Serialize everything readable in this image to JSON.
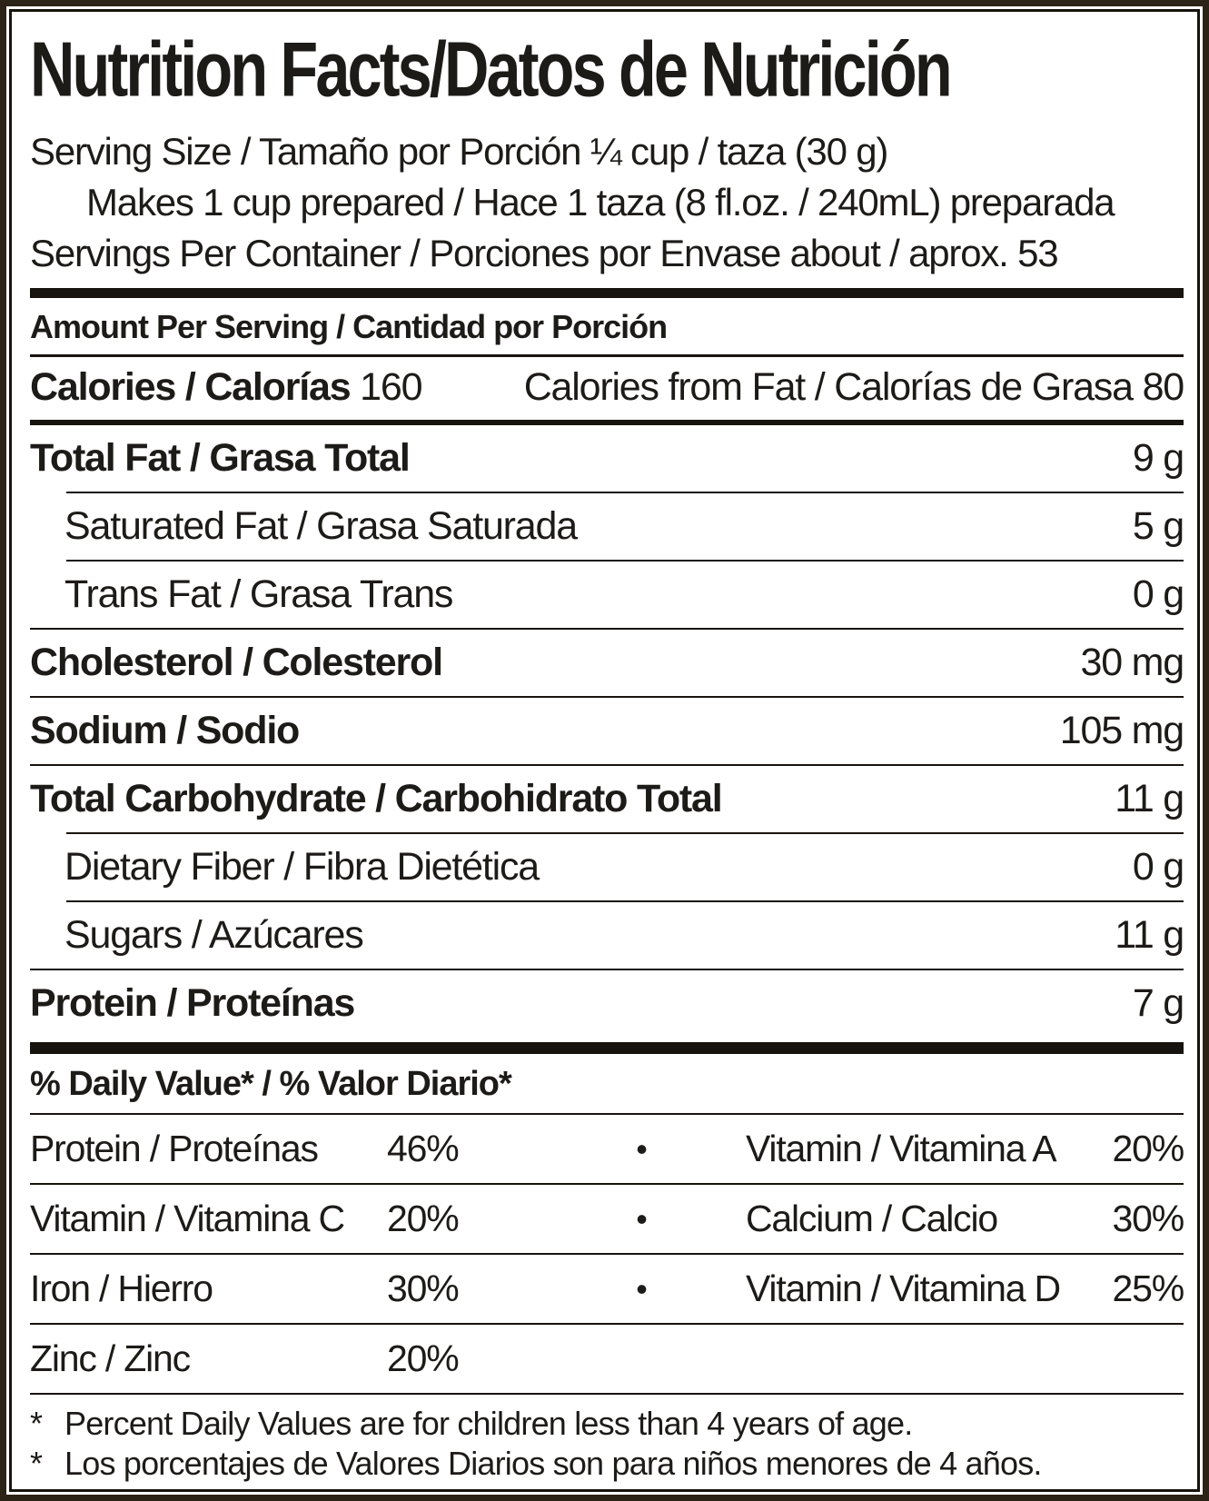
{
  "title": "Nutrition Facts/Datos de Nutrición",
  "serving": {
    "size_line": "Serving Size / Tamaño por Porción ¼ cup / taza (30 g)",
    "makes_line": "Makes 1 cup prepared / Hace 1 taza (8 fl.oz. / 240mL) preparada",
    "servings_line": "Servings Per Container / Porciones por Envase about / aprox. 53"
  },
  "amount_per_serving_header": "Amount Per Serving / Cantidad por Porción",
  "calories": {
    "label": "Calories / Calorías",
    "value": "160",
    "from_fat_label": "Calories from Fat / Calorías de Grasa",
    "from_fat_value": "80"
  },
  "nutrients": [
    {
      "label": "Total Fat / Grasa Total",
      "value": "9 g"
    },
    {
      "label": "Saturated Fat / Grasa Saturada",
      "value": "5 g"
    },
    {
      "label": "Trans Fat / Grasa Trans",
      "value": "0 g"
    },
    {
      "label": "Cholesterol / Colesterol",
      "value": "30 mg"
    },
    {
      "label": "Sodium / Sodio",
      "value": "105 mg"
    },
    {
      "label": "Total Carbohydrate / Carbohidrato Total",
      "value": "11 g"
    },
    {
      "label": "Dietary Fiber / Fibra Dietética",
      "value": "0 g"
    },
    {
      "label": "Sugars / Azúcares",
      "value": "11 g"
    },
    {
      "label": "Protein / Proteínas",
      "value": "7 g"
    }
  ],
  "daily_value_header": "% Daily Value* / % Valor Diario*",
  "bullet": "•",
  "daily_values": [
    {
      "left_label": "Protein / Proteínas",
      "left_value": "46%",
      "right_label": "Vitamin / Vitamina A",
      "right_value": "20%"
    },
    {
      "left_label": "Vitamin / Vitamina C",
      "left_value": "20%",
      "right_label": "Calcium / Calcio",
      "right_value": "30%"
    },
    {
      "left_label": "Iron / Hierro",
      "left_value": "30%",
      "right_label": "Vitamin / Vitamina D",
      "right_value": "25%"
    },
    {
      "left_label": "Zinc / Zinc",
      "left_value": "20%"
    }
  ],
  "footnote_marker": "*",
  "footnotes": [
    "Percent Daily Values are for children less than 4 years of age.",
    "Los porcentajes de Valores Diarios son para niños menores de 4 años."
  ],
  "colors": {
    "text": "#1d1b18",
    "outer_frame": "#2b2315",
    "bar": "#17130e",
    "background": "#ffffff"
  }
}
